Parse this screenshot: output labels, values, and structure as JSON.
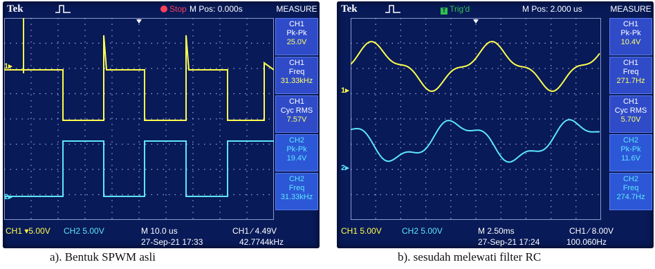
{
  "scope_a": {
    "brand": "Tek",
    "status": "Stop",
    "mpos": "M Pos: 0.000s",
    "measure_header": "MEASURE",
    "measurements": [
      {
        "channel": "CH1",
        "label": "Pk-Pk",
        "value": "25.0V"
      },
      {
        "channel": "CH1",
        "label": "Freq",
        "value": "31.33kHz"
      },
      {
        "channel": "CH1",
        "label": "Cyc RMS",
        "value": "7.57V"
      },
      {
        "channel": "CH2",
        "label": "Pk-Pk",
        "value": "19.4V"
      },
      {
        "channel": "CH2",
        "label": "Freq",
        "value": "31.33kHz"
      }
    ],
    "ch1_scale": "CH1 ▾5.00V",
    "ch2_scale": "CH2  5.00V",
    "timebase": "M 10.0 us",
    "trigger": "CH1 ∕ 4.49V",
    "datetime": "27-Sep-21 17:33",
    "trig_freq": "42.7744kHz",
    "ch1_marker": "1▸",
    "ch2_marker": "2▸"
  },
  "scope_b": {
    "brand": "Tek",
    "status": "Trig'd",
    "mpos": "M Pos: 2.000 us",
    "measure_header": "MEASURE",
    "measurements": [
      {
        "channel": "CH1",
        "label": "Pk-Pk",
        "value": "10.4V"
      },
      {
        "channel": "CH1",
        "label": "Freq",
        "value": "271.7Hz"
      },
      {
        "channel": "CH1",
        "label": "Cyc RMS",
        "value": "5.70V"
      },
      {
        "channel": "CH2",
        "label": "Pk-Pk",
        "value": "11.6V"
      },
      {
        "channel": "CH2",
        "label": "Freq",
        "value": "274.7Hz"
      }
    ],
    "ch1_scale": "CH1  5.00V",
    "ch2_scale": "CH2  5.00V",
    "timebase": "M 2.50ms",
    "trigger": "CH1 ∕ 8.00V",
    "datetime": "27-Sep-21 17:24",
    "trig_freq": "100.060Hz",
    "ch1_marker": "1▸",
    "ch2_marker": "2▸"
  },
  "captions": {
    "a": "a). Bentuk SPWM asli",
    "b": "b). sesudah melewati filter RC"
  },
  "colors": {
    "ch1": "#ffff4d",
    "ch2": "#5de6ff",
    "screen": "#081a58",
    "panel": "#2f4bc8"
  }
}
